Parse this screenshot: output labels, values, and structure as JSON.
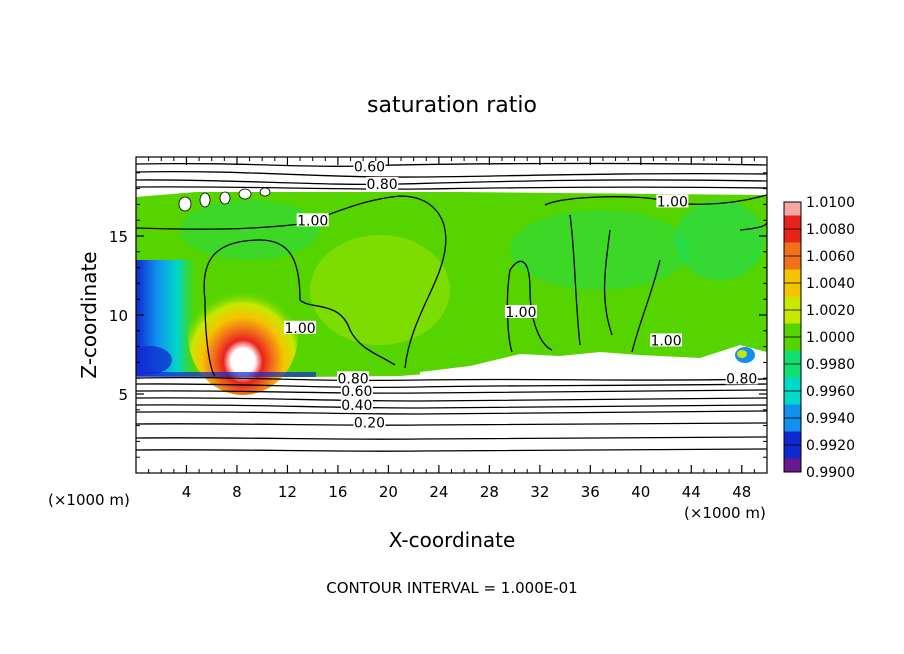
{
  "chart_data": {
    "type": "heatmap",
    "title": "saturation ratio",
    "xlabel": "X-coordinate",
    "ylabel": "Z-coordinate",
    "x_unit_note": "(×1000 m)",
    "x_unit_note_right": "(×1000 m)",
    "xlim": [
      0,
      50
    ],
    "ylim": [
      0,
      20
    ],
    "x_ticks": [
      4,
      8,
      12,
      16,
      20,
      24,
      28,
      32,
      36,
      40,
      44,
      48
    ],
    "y_ticks": [
      5,
      10,
      15
    ],
    "colorbar": {
      "ticks": [
        "1.0100",
        "1.0080",
        "1.0060",
        "1.0040",
        "1.0020",
        "1.0000",
        "0.9980",
        "0.9960",
        "0.9940",
        "0.9920",
        "0.9900"
      ],
      "colors": [
        "#f4a7a0",
        "#e8231c",
        "#f2701a",
        "#f5c400",
        "#c8e800",
        "#55d400",
        "#10e070",
        "#00d8c8",
        "#1090f0",
        "#1028d0",
        "#6a1890"
      ]
    },
    "contour_labels": [
      {
        "text": "0.60",
        "x": 18.5,
        "z": 19.2
      },
      {
        "text": "0.80",
        "x": 19.5,
        "z": 18.1
      },
      {
        "text": "1.00",
        "x": 14.0,
        "z": 15.8
      },
      {
        "text": "1.00",
        "x": 42.5,
        "z": 17.0
      },
      {
        "text": "1.00",
        "x": 13.0,
        "z": 9.0
      },
      {
        "text": "1.00",
        "x": 30.5,
        "z": 10.0
      },
      {
        "text": "1.00",
        "x": 42.0,
        "z": 8.2
      },
      {
        "text": "0.80",
        "x": 17.2,
        "z": 5.8
      },
      {
        "text": "0.60",
        "x": 17.5,
        "z": 5.0
      },
      {
        "text": "0.40",
        "x": 17.5,
        "z": 4.1
      },
      {
        "text": "0.20",
        "x": 18.5,
        "z": 3.0
      },
      {
        "text": "0.80",
        "x": 48.0,
        "z": 5.8
      }
    ],
    "contour_interval_text": "CONTOUR INTERVAL = 1.000E-01"
  }
}
